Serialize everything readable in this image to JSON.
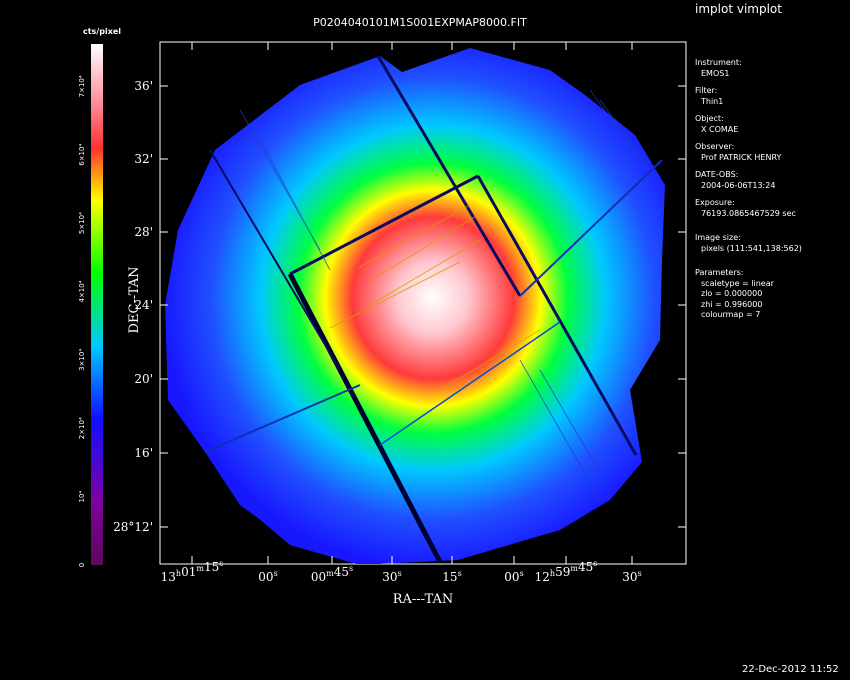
{
  "window": {
    "app_title": "implot vimplot"
  },
  "plot": {
    "title": "P0204040101M1S001EXPMAP8000.FIT",
    "xlabel": "RA---TAN",
    "ylabel": "DEC--TAN"
  },
  "colorbar": {
    "title": "cts/pixel",
    "ticks": [
      {
        "label": "0",
        "value": 0
      },
      {
        "label": "10⁴",
        "value": 10000
      },
      {
        "label": "2×10⁴",
        "value": 20000
      },
      {
        "label": "3×10⁴",
        "value": 30000
      },
      {
        "label": "4×10⁴",
        "value": 40000
      },
      {
        "label": "5×10⁴",
        "value": 50000
      },
      {
        "label": "6×10⁴",
        "value": 60000
      },
      {
        "label": "7×10⁴",
        "value": 70000
      }
    ],
    "max": 76193
  },
  "info_panel": {
    "instrument_label": "Instrument:",
    "instrument": "EMOS1",
    "filter_label": "Filter:",
    "filter": "Thin1",
    "object_label": "Object:",
    "object": "X COMAE",
    "observer_label": "Observer:",
    "observer": "Prof PATRICK HENRY",
    "date_label": "DATE-OBS:",
    "date": "2004-06-06T13:24",
    "exposure_label": "Exposure:",
    "exposure": "76193.0865467529 sec",
    "image_size_label": "Image size:",
    "image_size": "pixels (111:541,138:562)",
    "parameters_label": "Parameters:",
    "scaletype": "scaletype = linear",
    "zlo": "zlo = 0.000000",
    "zhi": "zhi = 0.996000",
    "colourmap": "colourmap =   7"
  },
  "footer": {
    "timestamp": "22-Dec-2012 11:52"
  },
  "chart_data": {
    "type": "heatmap",
    "title": "P0204040101M1S001EXPMAP8000.FIT",
    "xlabel": "RA---TAN",
    "ylabel": "DEC--TAN",
    "x_ticks": [
      {
        "h": "13",
        "hs": "h",
        "m": "01",
        "ms": "m",
        "s": "15",
        "ss": "s"
      },
      {
        "s": "00",
        "ss": "s"
      },
      {
        "m": "00",
        "ms": "m",
        "s": "45",
        "ss": "s"
      },
      {
        "s": "30",
        "ss": "s"
      },
      {
        "s": "15",
        "ss": "s"
      },
      {
        "s": "00",
        "ss": "s"
      },
      {
        "h": "12",
        "hs": "h",
        "m": "59",
        "ms": "m",
        "s": "45",
        "ss": "s"
      },
      {
        "s": "30",
        "ss": "s"
      }
    ],
    "y_ticks": [
      "28°12'",
      "16'",
      "20'",
      "24'",
      "28'",
      "32'",
      "36'"
    ],
    "z_range": [
      0,
      76193
    ],
    "colormap": "rainbow",
    "colors": {
      "low": "#6b0a6b",
      "blue": "#1010ff",
      "cyan": "#00c8ff",
      "green": "#00ff00",
      "yellow": "#ffff00",
      "red": "#ff3030",
      "peak": "#ffffff"
    }
  }
}
